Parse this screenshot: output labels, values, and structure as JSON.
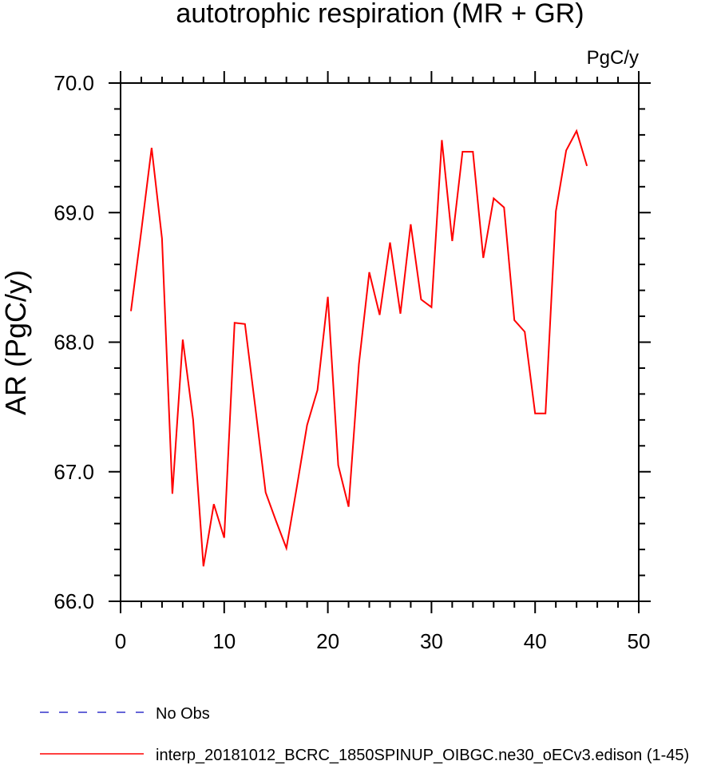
{
  "chart_data": {
    "type": "line",
    "title": "autotrophic respiration (MR + GR)",
    "units_label": "PgC/y",
    "ylabel": "AR  (PgC/y)",
    "xlabel": "",
    "xlim": [
      0,
      50
    ],
    "ylim": [
      66.0,
      70.0
    ],
    "x_ticks": [
      "0",
      "10",
      "20",
      "30",
      "40",
      "50"
    ],
    "y_ticks": [
      "66.0",
      "67.0",
      "68.0",
      "69.0",
      "70.0"
    ],
    "grid": false,
    "x": [
      1,
      2,
      3,
      4,
      5,
      6,
      7,
      8,
      9,
      10,
      11,
      12,
      13,
      14,
      15,
      16,
      17,
      18,
      19,
      20,
      21,
      22,
      23,
      24,
      25,
      26,
      27,
      28,
      29,
      30,
      31,
      32,
      33,
      34,
      35,
      36,
      37,
      38,
      39,
      40,
      41,
      42,
      43,
      44,
      45
    ],
    "series": [
      {
        "name": "interp_20181012_BCRC_1850SPINUP_OIBGC.ne30_oECv3.edison (1-45)",
        "color": "#ff0000",
        "style": "solid",
        "values": [
          68.24,
          68.86,
          69.5,
          68.8,
          66.83,
          68.02,
          67.4,
          66.27,
          66.75,
          66.49,
          68.15,
          68.14,
          67.5,
          66.84,
          66.62,
          66.41,
          66.88,
          67.36,
          67.63,
          68.35,
          67.05,
          66.73,
          67.83,
          68.54,
          68.21,
          68.77,
          68.22,
          68.91,
          68.33,
          68.27,
          69.56,
          68.78,
          69.47,
          69.47,
          68.65,
          69.11,
          69.04,
          68.17,
          68.08,
          67.45,
          67.45,
          69.01,
          69.48,
          69.63,
          69.36
        ]
      }
    ],
    "legend": {
      "position": "bottom",
      "entries": [
        {
          "label": "No Obs",
          "color": "#3333cc",
          "style": "dashed"
        },
        {
          "label": "interp_20181012_BCRC_1850SPINUP_OIBGC.ne30_oECv3.edison (1-45)",
          "color": "#ff0000",
          "style": "solid"
        }
      ]
    }
  }
}
